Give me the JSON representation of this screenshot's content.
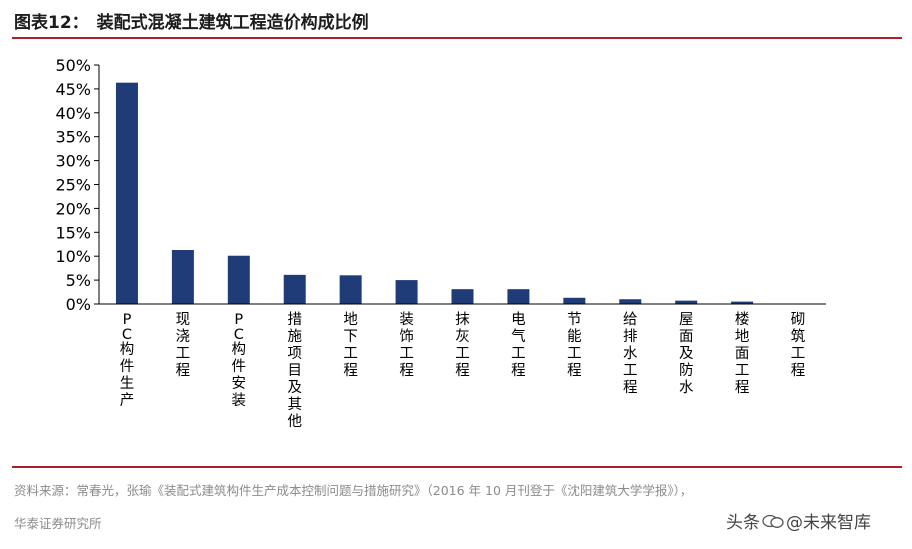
{
  "header": {
    "figure_number": "图表12：",
    "title": "装配式混凝土建筑工程造价构成比例"
  },
  "footer": {
    "source": "资料来源：常春光，张瑜《装配式建筑构件生产成本控制问题与措施研究》（2016 年 10 月刊登于《沈阳建筑大学学报》），",
    "institute": "华泰证券研究所",
    "watermark_prefix": "头条",
    "watermark_name": "@未来智库",
    "watermark_icon": "chat-bubble-icon"
  },
  "colors": {
    "accent_rule": "#b01e2b",
    "bar": "#1f3b78"
  },
  "chart_data": {
    "type": "bar",
    "title": "",
    "xlabel": "",
    "ylabel": "",
    "ylim": [
      0,
      50
    ],
    "yticks": [
      0,
      5,
      10,
      15,
      20,
      25,
      30,
      35,
      40,
      45,
      50
    ],
    "tick_suffix": "%",
    "grid": false,
    "legend": "none",
    "categories": [
      "PC构件生产",
      "现浇工程",
      "PC构件安装",
      "措施项目及其他",
      "地下工程",
      "装饰工程",
      "抹灰工程",
      "电气工程",
      "节能工程",
      "给排水工程",
      "屋面及防水",
      "楼地面工程",
      "砌筑工程"
    ],
    "values": [
      46.3,
      11.3,
      10.1,
      6.1,
      6.0,
      5.0,
      3.1,
      3.1,
      1.3,
      1.0,
      0.7,
      0.5,
      0.1
    ]
  }
}
